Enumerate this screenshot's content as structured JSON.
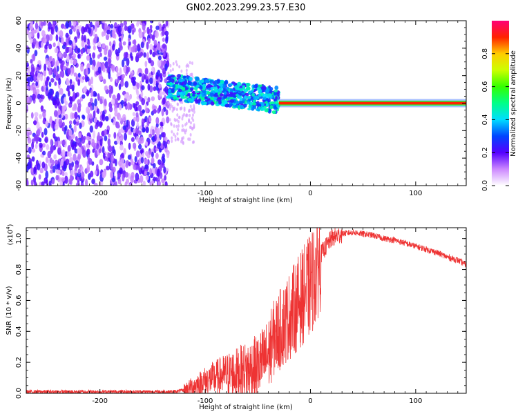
{
  "figure": {
    "title": "GN02.2023.299.23.57.E30"
  },
  "chart_data": [
    {
      "type": "heatmap",
      "xlabel": "Height of straight line (km)",
      "ylabel": "Frequency (Hz)",
      "xlim": [
        -270,
        148
      ],
      "ylim": [
        -60,
        60
      ],
      "xticks": [
        "-200",
        "-100",
        "0",
        "100"
      ],
      "xtick_values": [
        -200,
        -100,
        0,
        100
      ],
      "yticks": [
        "-60",
        "-40",
        "-20",
        "0",
        "20",
        "40",
        "60"
      ],
      "ytick_values": [
        -60,
        -40,
        -20,
        0,
        20,
        40,
        60
      ],
      "colorbar": {
        "label": "Normalized spectral amplitude",
        "range": [
          0,
          1
        ],
        "ticks": [
          "0.0",
          "0.2",
          "0.4",
          "0.6",
          "0.8"
        ],
        "tick_values": [
          0,
          0.2,
          0.4,
          0.6,
          0.8
        ]
      },
      "regions": [
        {
          "x": [
            -270,
            -135
          ],
          "freq": [
            -60,
            60
          ],
          "amplitude": [
            0.05,
            0.25
          ],
          "note": "broadband noise"
        },
        {
          "x": [
            -135,
            -30
          ],
          "freq_center_start": 12,
          "freq_center_end": 2,
          "amplitude": [
            0.2,
            0.5
          ]
        },
        {
          "x": [
            -30,
            148
          ],
          "freq": [
            -1,
            1
          ],
          "amplitude": [
            0.9,
            1.0
          ],
          "note": "narrow tone near 0 Hz"
        }
      ]
    },
    {
      "type": "line",
      "xlabel": "Height of straight line (km)",
      "ylabel": "SNR (10 * v/v)",
      "y_multiplier": "(x10",
      "y_multiplier_exp": "4",
      "y_multiplier_close": ")",
      "xlim": [
        -270,
        148
      ],
      "ylim": [
        0,
        1.07
      ],
      "xticks": [
        "-200",
        "-100",
        "0",
        "100"
      ],
      "xtick_values": [
        -200,
        -100,
        0,
        100
      ],
      "yticks": [
        "0.0",
        "0.2",
        "0.4",
        "0.6",
        "0.8",
        "1.0"
      ],
      "ytick_values": [
        0,
        0.2,
        0.4,
        0.6,
        0.8,
        1.0
      ],
      "series": [
        {
          "color": "#ee3333",
          "x": [
            -270,
            -130,
            -120,
            -110,
            -100,
            -90,
            -80,
            -70,
            -60,
            -50,
            -40,
            -35,
            -30,
            -25,
            -20,
            -15,
            -10,
            -5,
            0,
            5,
            10,
            20,
            30,
            40,
            50,
            60,
            70,
            80,
            90,
            100,
            110,
            120,
            130,
            140,
            148
          ],
          "y": [
            0.01,
            0.01,
            0.02,
            0.05,
            0.08,
            0.1,
            0.12,
            0.13,
            0.15,
            0.17,
            0.25,
            0.35,
            0.4,
            0.45,
            0.5,
            0.55,
            0.6,
            0.65,
            0.7,
            0.78,
            0.9,
            1.0,
            1.03,
            1.04,
            1.03,
            1.02,
            1.0,
            0.99,
            0.97,
            0.95,
            0.93,
            0.91,
            0.88,
            0.86,
            0.83
          ]
        }
      ]
    }
  ]
}
